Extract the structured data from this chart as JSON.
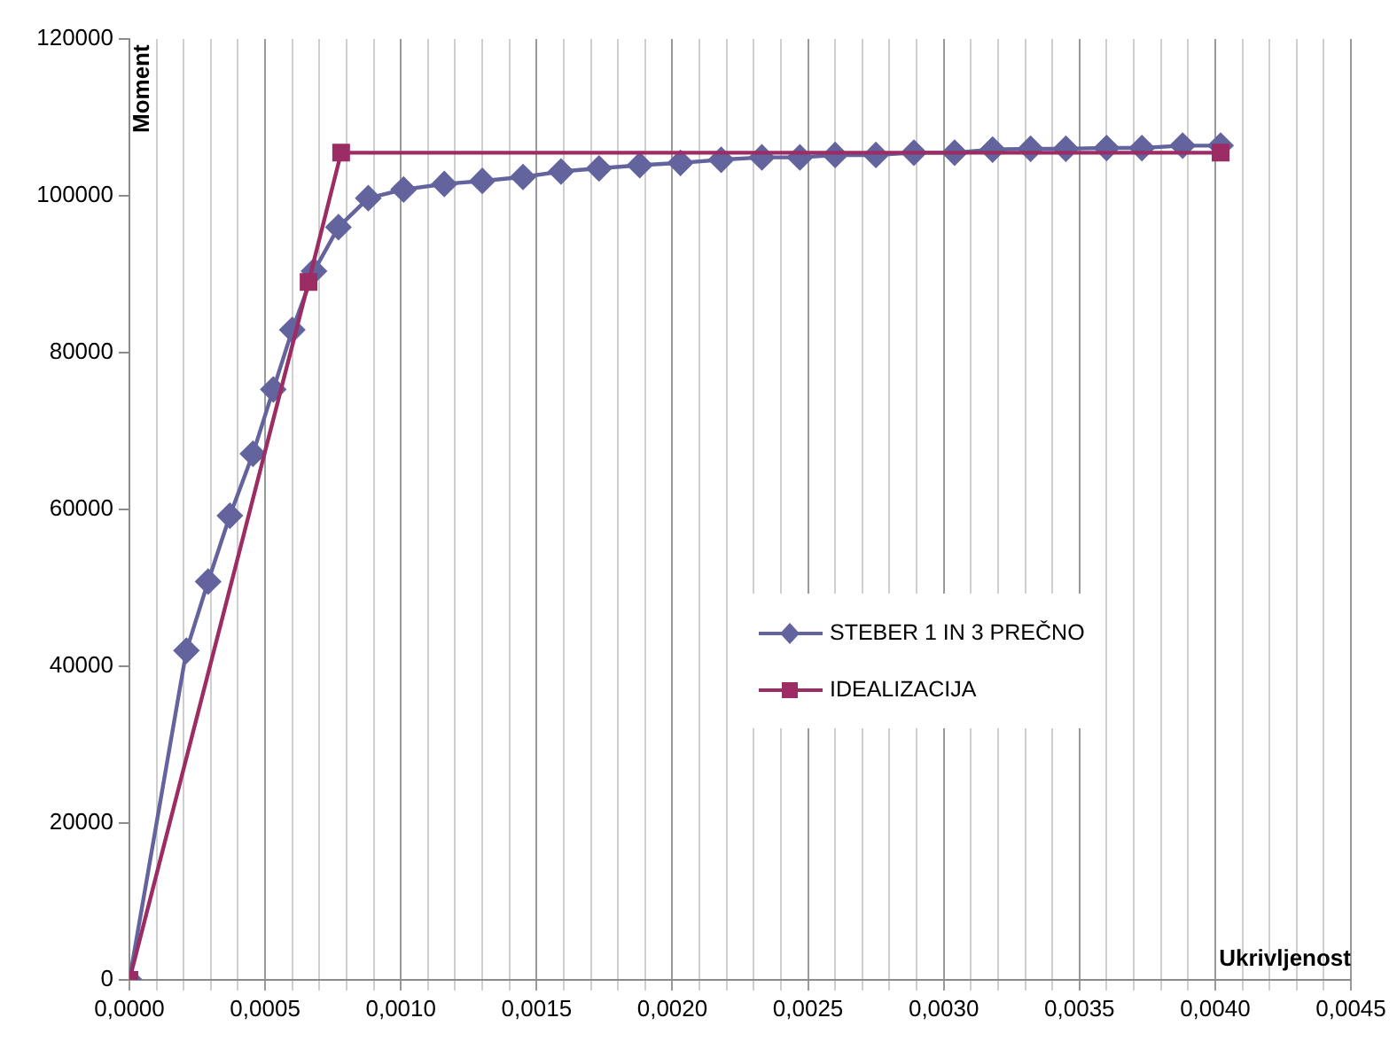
{
  "chart_data": {
    "type": "line",
    "xlabel": "Ukrivljenost",
    "ylabel": "Moment",
    "xlim": [
      0,
      0.0045
    ],
    "ylim": [
      0,
      120000
    ],
    "xticks": [
      {
        "value": 0,
        "label": "0,0000"
      },
      {
        "value": 0.0001,
        "label": null
      },
      {
        "value": 0.0002,
        "label": null
      },
      {
        "value": 0.0003,
        "label": null
      },
      {
        "value": 0.0004,
        "label": null
      },
      {
        "value": 0.0005,
        "label": "0,0005"
      },
      {
        "value": 0.0006,
        "label": null
      },
      {
        "value": 0.0007,
        "label": null
      },
      {
        "value": 0.0008,
        "label": null
      },
      {
        "value": 0.0009,
        "label": null
      },
      {
        "value": 0.001,
        "label": "0,0010"
      },
      {
        "value": 0.0011,
        "label": null
      },
      {
        "value": 0.0012,
        "label": null
      },
      {
        "value": 0.0013,
        "label": null
      },
      {
        "value": 0.0014,
        "label": null
      },
      {
        "value": 0.0015,
        "label": "0,0015"
      },
      {
        "value": 0.0016,
        "label": null
      },
      {
        "value": 0.0017,
        "label": null
      },
      {
        "value": 0.0018,
        "label": null
      },
      {
        "value": 0.0019,
        "label": null
      },
      {
        "value": 0.002,
        "label": "0,0020"
      },
      {
        "value": 0.0021,
        "label": null
      },
      {
        "value": 0.0022,
        "label": null
      },
      {
        "value": 0.0023,
        "label": null
      },
      {
        "value": 0.0024,
        "label": null
      },
      {
        "value": 0.0025,
        "label": "0,0025"
      },
      {
        "value": 0.0026,
        "label": null
      },
      {
        "value": 0.0027,
        "label": null
      },
      {
        "value": 0.0028,
        "label": null
      },
      {
        "value": 0.0029,
        "label": null
      },
      {
        "value": 0.003,
        "label": "0,0030"
      },
      {
        "value": 0.0031,
        "label": null
      },
      {
        "value": 0.0032,
        "label": null
      },
      {
        "value": 0.0033,
        "label": null
      },
      {
        "value": 0.0034,
        "label": null
      },
      {
        "value": 0.0035,
        "label": "0,0035"
      },
      {
        "value": 0.0036,
        "label": null
      },
      {
        "value": 0.0037,
        "label": null
      },
      {
        "value": 0.0038,
        "label": null
      },
      {
        "value": 0.0039,
        "label": null
      },
      {
        "value": 0.004,
        "label": "0,0040"
      },
      {
        "value": 0.0041,
        "label": null
      },
      {
        "value": 0.0042,
        "label": null
      },
      {
        "value": 0.0043,
        "label": null
      },
      {
        "value": 0.0044,
        "label": null
      },
      {
        "value": 0.0045,
        "label": "0,0045"
      }
    ],
    "yticks": [
      0,
      20000,
      40000,
      60000,
      80000,
      100000,
      120000
    ],
    "grid": "x",
    "legend": "right",
    "line_style": "solid",
    "series": [
      {
        "name": "STEBER 1 IN 3 PREČNO",
        "color": "#63639e",
        "marker": "diamond",
        "x": [
          0,
          0.00021,
          0.00029,
          0.00037,
          0.000455,
          0.00053,
          0.0006,
          0.00068,
          0.00077,
          0.00088,
          0.00101,
          0.00116,
          0.0013,
          0.00145,
          0.00159,
          0.00173,
          0.00188,
          0.00203,
          0.00218,
          0.00233,
          0.00247,
          0.0026,
          0.00275,
          0.00289,
          0.00304,
          0.00318,
          0.00332,
          0.00345,
          0.0036,
          0.00373,
          0.00388,
          0.00402
        ],
        "values": [
          0,
          42000,
          50800,
          59200,
          67100,
          75300,
          82900,
          90400,
          96000,
          99700,
          100800,
          101500,
          101900,
          102400,
          103100,
          103500,
          103900,
          104200,
          104600,
          104900,
          104900,
          105200,
          105200,
          105500,
          105500,
          105900,
          106000,
          106000,
          106100,
          106100,
          106400,
          106400
        ]
      },
      {
        "name": "IDEALIZACIJA",
        "color": "#9b2d64",
        "marker": "square",
        "x": [
          0,
          0.00066,
          0.00078,
          0.00402
        ],
        "values": [
          0,
          89000,
          105500,
          105500
        ]
      }
    ]
  }
}
